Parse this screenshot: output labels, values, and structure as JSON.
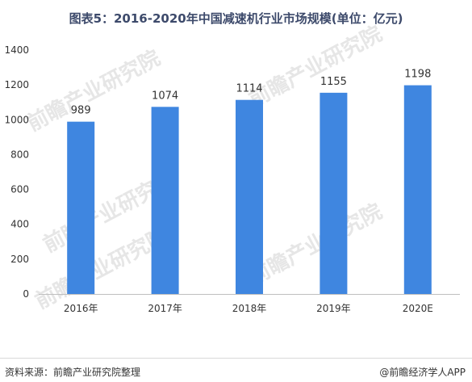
{
  "title": "图表5：2016-2020年中国减速机行业市场规模(单位：亿元)",
  "footer": {
    "source": "资料来源：前瞻产业研究院整理",
    "brand": "@前瞻经济学人APP"
  },
  "watermark": {
    "text": "前瞻产业研究院"
  },
  "colors": {
    "bar": "#3f86e0",
    "title": "#3d4a6b",
    "axis": "#bfbfbf",
    "watermark": "#e6e6e6"
  },
  "chart_data": {
    "type": "bar",
    "title": "图表5：2016-2020年中国减速机行业市场规模(单位：亿元)",
    "xlabel": "",
    "ylabel": "",
    "categories": [
      "2016年",
      "2017年",
      "2018年",
      "2019年",
      "2020E"
    ],
    "values": [
      989,
      1074,
      1114,
      1155,
      1198
    ],
    "ylim": [
      0,
      1400
    ],
    "yticks": [
      0,
      200,
      400,
      600,
      800,
      1000,
      1200,
      1400
    ],
    "grid": false,
    "legend": "none"
  }
}
